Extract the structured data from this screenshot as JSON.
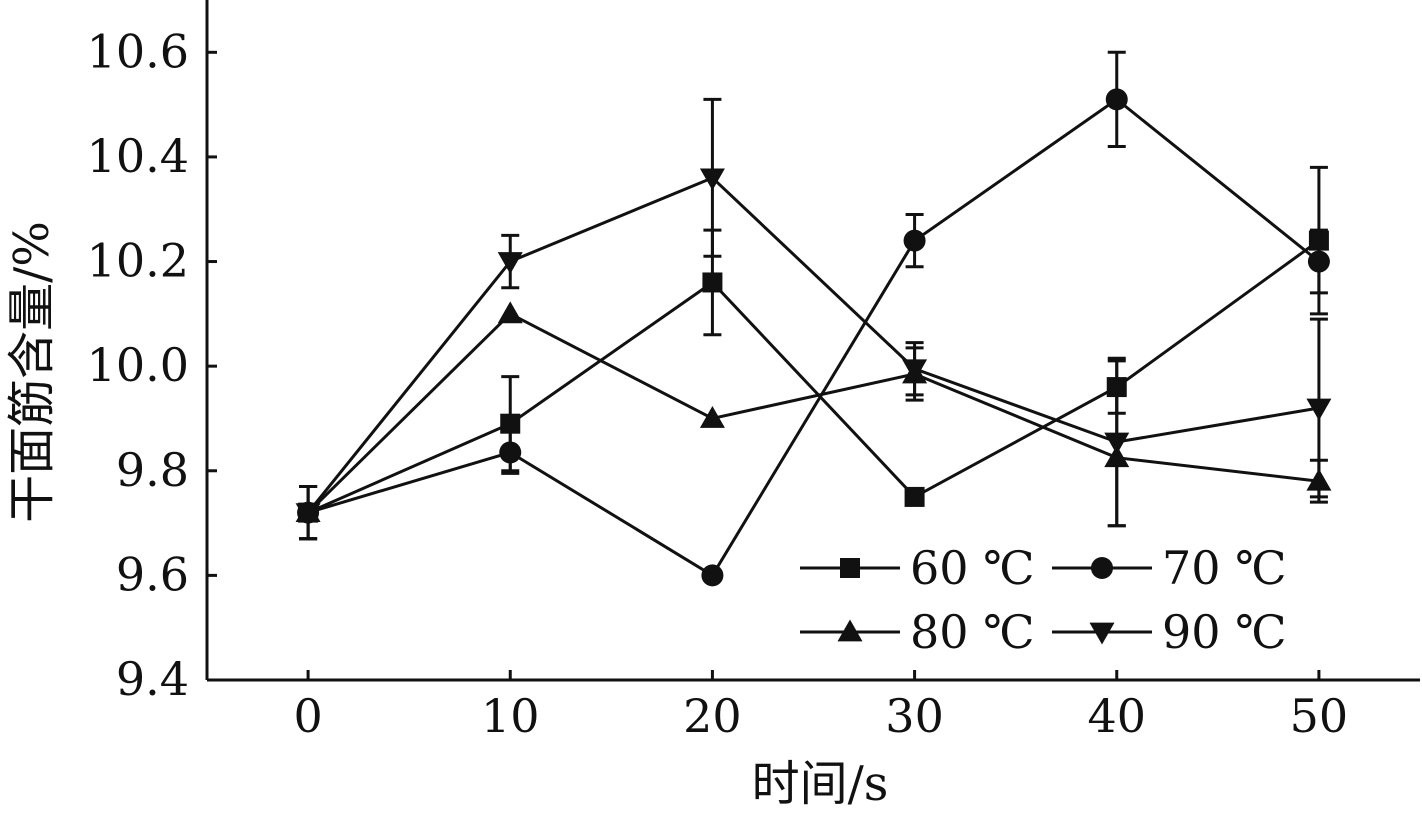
{
  "chart_data": {
    "type": "line",
    "title": "",
    "xlabel": "时间/s",
    "ylabel": "干面筋含量/%",
    "x": [
      0,
      10,
      20,
      30,
      40,
      50
    ],
    "xlim": [
      -5,
      55
    ],
    "ylim": [
      9.4,
      10.7
    ],
    "xticks": [
      "0",
      "10",
      "20",
      "30",
      "40",
      "50"
    ],
    "yticks": [
      "9.4",
      "9.6",
      "9.8",
      "10.0",
      "10.2",
      "10.4",
      "10.6"
    ],
    "grid": false,
    "legend_position": "lower-right",
    "series": [
      {
        "name": "60 ℃",
        "marker": "square",
        "values": [
          9.72,
          9.89,
          10.16,
          9.75,
          9.96,
          10.24
        ],
        "errors": [
          0.05,
          0.09,
          0.1,
          0.0,
          0.05,
          0.14
        ]
      },
      {
        "name": "70 ℃",
        "marker": "circle",
        "values": [
          9.72,
          9.835,
          9.6,
          10.24,
          10.51,
          10.2
        ],
        "errors": [
          0.05,
          0.04,
          0.0,
          0.05,
          0.09,
          0.06
        ]
      },
      {
        "name": "80 ℃",
        "marker": "triangle-up",
        "values": [
          9.72,
          10.1,
          9.9,
          9.985,
          9.825,
          9.78
        ],
        "errors": [
          0.05,
          0.0,
          0.0,
          0.05,
          0.13,
          0.04
        ]
      },
      {
        "name": "90 ℃",
        "marker": "triangle-down",
        "values": [
          9.72,
          10.2,
          10.36,
          9.995,
          9.855,
          9.92
        ],
        "errors": [
          0.05,
          0.05,
          0.15,
          0.05,
          0.16,
          0.17
        ]
      }
    ]
  }
}
